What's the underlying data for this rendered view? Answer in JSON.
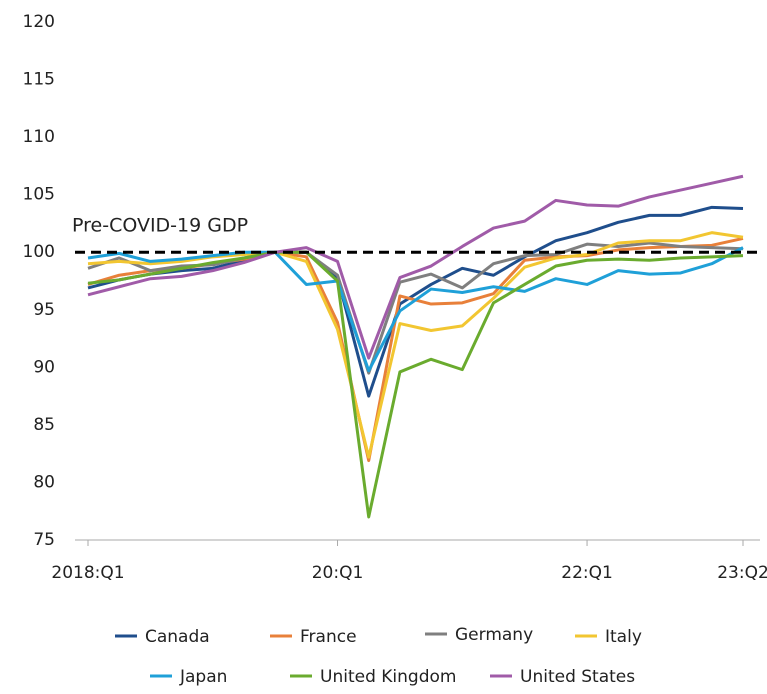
{
  "chart_data": {
    "type": "line",
    "categories": [
      "2018:Q1",
      null,
      null,
      null,
      null,
      null,
      null,
      null,
      "20:Q1",
      null,
      null,
      null,
      null,
      null,
      null,
      null,
      "22:Q1",
      null,
      null,
      null,
      null,
      "23:Q2"
    ],
    "series": [
      {
        "name": "Canada",
        "color": "#1f4e8c",
        "values": [
          96.9,
          97.6,
          98.1,
          98.4,
          98.6,
          99.3,
          100,
          100,
          97.8,
          87.5,
          95.5,
          97.2,
          98.6,
          98.0,
          99.6,
          101.0,
          101.7,
          102.6,
          103.2,
          103.2,
          103.9,
          103.8
        ]
      },
      {
        "name": "France",
        "color": "#e8803a",
        "values": [
          97.2,
          98.0,
          98.4,
          98.6,
          99.0,
          99.4,
          100,
          99.6,
          93.9,
          81.9,
          96.2,
          95.5,
          95.6,
          96.4,
          99.3,
          99.6,
          99.7,
          100.2,
          100.4,
          100.5,
          100.6,
          101.2
        ]
      },
      {
        "name": "Germany",
        "color": "#7f7f7f",
        "values": [
          98.6,
          99.5,
          98.4,
          98.8,
          98.9,
          99.5,
          100,
          100.0,
          98.0,
          89.5,
          97.4,
          98.1,
          96.9,
          99.0,
          99.7,
          99.8,
          100.7,
          100.5,
          100.8,
          100.5,
          100.4,
          100.3
        ]
      },
      {
        "name": "Italy",
        "color": "#f2c631",
        "values": [
          99.0,
          99.2,
          99.0,
          99.2,
          99.6,
          99.8,
          100,
          99.2,
          93.3,
          82.2,
          93.8,
          93.2,
          93.6,
          96.0,
          98.7,
          99.5,
          99.8,
          100.8,
          101.0,
          101.0,
          101.7,
          101.3
        ]
      },
      {
        "name": "Japan",
        "color": "#1fa0d8",
        "values": [
          99.5,
          99.9,
          99.2,
          99.4,
          99.7,
          100,
          100,
          97.2,
          97.5,
          89.7,
          94.9,
          96.8,
          96.5,
          97.0,
          96.6,
          97.7,
          97.2,
          98.4,
          98.1,
          98.2,
          99.0,
          100.4
        ]
      },
      {
        "name": "United Kingdom",
        "color": "#6aab2e",
        "values": [
          97.3,
          97.6,
          98.1,
          98.6,
          99.1,
          99.5,
          100,
          100,
          97.5,
          77.0,
          89.6,
          90.7,
          89.8,
          95.6,
          97.2,
          98.8,
          99.3,
          99.4,
          99.3,
          99.5,
          99.6,
          99.7
        ]
      },
      {
        "name": "United States",
        "color": "#a05ba8",
        "values": [
          96.3,
          97.0,
          97.7,
          97.9,
          98.4,
          99.1,
          100,
          100.4,
          99.2,
          90.8,
          97.8,
          98.8,
          100.5,
          102.1,
          102.7,
          104.5,
          104.1,
          104.0,
          104.8,
          105.4,
          106.0,
          106.6
        ]
      }
    ],
    "reference_line": {
      "value": 100,
      "label": "Pre-COVID-19 GDP"
    },
    "ylim": [
      75,
      120
    ],
    "yticks": [
      75,
      80,
      85,
      90,
      95,
      100,
      105,
      110,
      115,
      120
    ],
    "grid": false
  }
}
